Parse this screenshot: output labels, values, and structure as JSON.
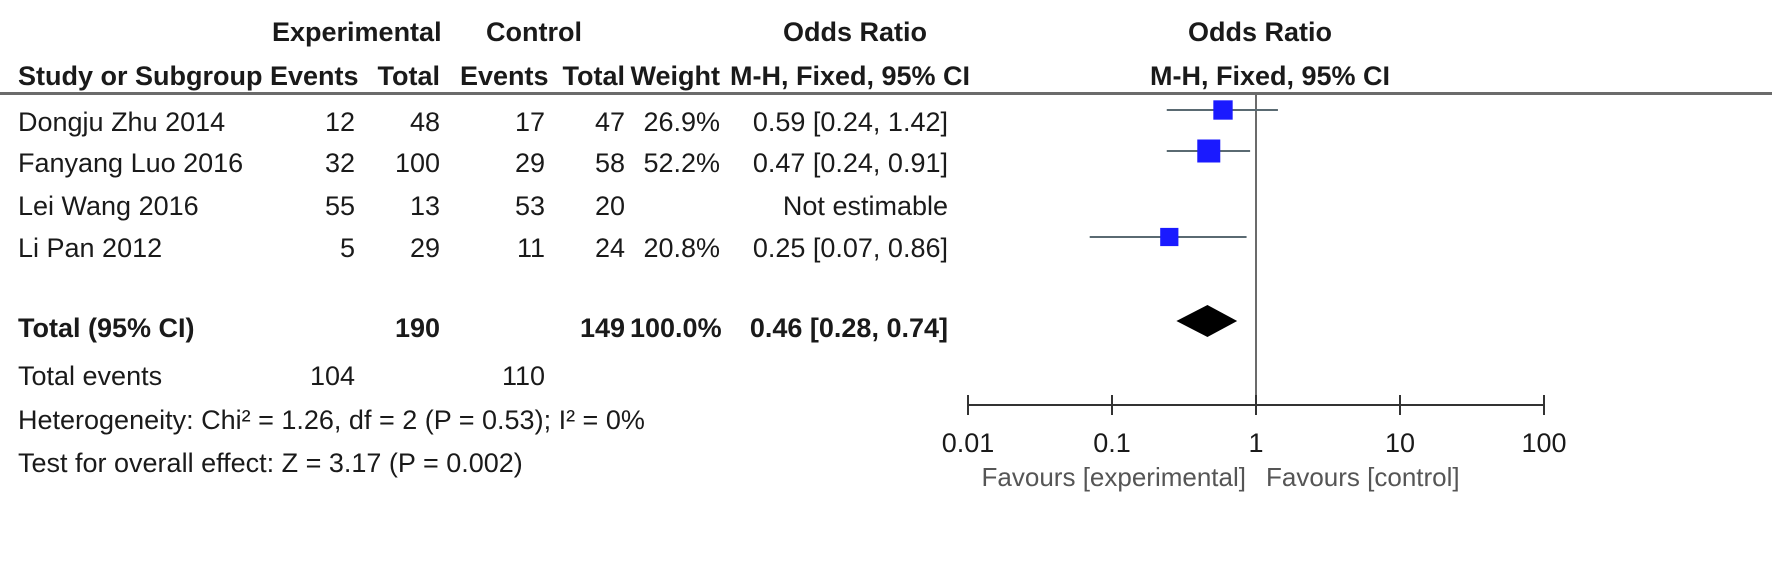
{
  "header": {
    "group_experimental": "Experimental",
    "group_control": "Control",
    "odds_ratio": "Odds Ratio",
    "study": "Study or Subgroup",
    "exp_events": "Events",
    "exp_total": "Total",
    "ctl_events": "Events",
    "ctl_total": "Total",
    "weight": "Weight",
    "method": "M-H, Fixed, 95% CI",
    "plot_title": "Odds Ratio",
    "plot_method": "M-H, Fixed, 95% CI"
  },
  "rows": [
    {
      "study": "Dongju Zhu 2014",
      "exp_events": "12",
      "exp_total": "48",
      "ctl_events": "17",
      "ctl_total": "47",
      "weight": "26.9%",
      "ci_text": "0.59 [0.24, 1.42]"
    },
    {
      "study": "Fanyang Luo 2016",
      "exp_events": "32",
      "exp_total": "100",
      "ctl_events": "29",
      "ctl_total": "58",
      "weight": "52.2%",
      "ci_text": "0.47 [0.24, 0.91]"
    },
    {
      "study": "Lei Wang 2016",
      "exp_events": "55",
      "exp_total": "13",
      "ctl_events": "53",
      "ctl_total": "20",
      "weight": "",
      "ci_text": "Not estimable"
    },
    {
      "study": "Li Pan 2012",
      "exp_events": "5",
      "exp_total": "29",
      "ctl_events": "11",
      "ctl_total": "24",
      "weight": "20.8%",
      "ci_text": "0.25 [0.07, 0.86]"
    }
  ],
  "total": {
    "label": "Total (95% CI)",
    "exp_total": "190",
    "ctl_total": "149",
    "weight": "100.0%",
    "ci_text": "0.46 [0.28, 0.74]"
  },
  "total_events": {
    "label": "Total events",
    "exp_events": "104",
    "ctl_events": "110"
  },
  "heterogeneity": "Heterogeneity: Chi² = 1.26, df = 2 (P = 0.53); I² = 0%",
  "overall_effect": "Test for overall effect: Z = 3.17 (P = 0.002)",
  "chart_data": {
    "type": "forest",
    "scale": "log",
    "xlim": [
      0.01,
      100
    ],
    "ticks": [
      {
        "value": 0.01,
        "label": "0.01"
      },
      {
        "value": 0.1,
        "label": "0.1"
      },
      {
        "value": 1,
        "label": "1"
      },
      {
        "value": 10,
        "label": "10"
      },
      {
        "value": 100,
        "label": "100"
      }
    ],
    "studies": [
      {
        "name": "Dongju Zhu 2014",
        "or": 0.59,
        "lo": 0.24,
        "hi": 1.42,
        "weight": 26.9
      },
      {
        "name": "Fanyang Luo 2016",
        "or": 0.47,
        "lo": 0.24,
        "hi": 0.91,
        "weight": 52.2
      },
      {
        "name": "Lei Wang 2016",
        "or": null,
        "lo": null,
        "hi": null,
        "weight": null
      },
      {
        "name": "Li Pan 2012",
        "or": 0.25,
        "lo": 0.07,
        "hi": 0.86,
        "weight": 20.8
      }
    ],
    "pooled": {
      "or": 0.46,
      "lo": 0.28,
      "hi": 0.74
    },
    "favours_left": "Favours [experimental]",
    "favours_right": "Favours [control]",
    "marker_color": "#1a1aff",
    "diamond_color": "#000000"
  }
}
